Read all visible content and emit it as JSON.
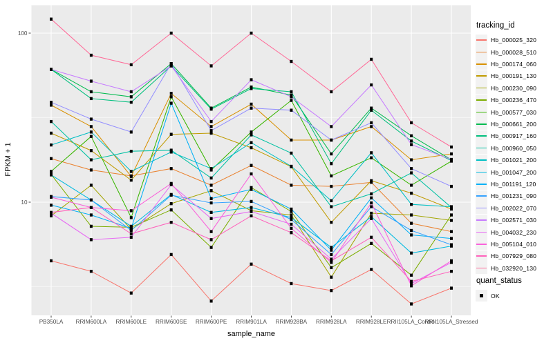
{
  "figure": {
    "background": "#FFFFFF",
    "panel_background": "#EBEBEB",
    "grid_color": "#FFFFFF",
    "axis_text_color": "#4D4D4D",
    "axis_tick_color": "#333333",
    "title_color": "#000000",
    "legend_key_fill": "#F2F2F2",
    "point_color": "#000000"
  },
  "chart_data": {
    "type": "line",
    "title": "",
    "xlabel": "sample_name",
    "ylabel": "FPKM + 1",
    "y_scale": "log10",
    "y_axis_ticks": [
      100,
      10
    ],
    "y_minor_gridlines": [
      31.62,
      3.162
    ],
    "ylim": [
      2.1,
      145
    ],
    "grid": true,
    "point_shape": "filled-square",
    "legend_position": "right",
    "legend_title": "tracking_id",
    "point_legend_title": "quant_status",
    "point_legend_items": [
      "OK"
    ],
    "categories": [
      "PB350LA",
      "RRIM600LA",
      "RRIM600LE",
      "RRIM600SE",
      "RRIM600PE",
      "RRIM901LA",
      "RRIM928BA",
      "RRIM928LA",
      "RRIM928LE",
      "RRII105LA_Control",
      "RRII105LA_Stressed"
    ],
    "series": [
      {
        "name": "Hb_000025_320",
        "color": "#F8766D",
        "values": [
          4.5,
          3.9,
          2.9,
          4.9,
          2.6,
          4.3,
          3.3,
          3.0,
          4.0,
          2.5,
          3.1
        ]
      },
      {
        "name": "Hb_000028_510",
        "color": "#EA8331",
        "values": [
          18.1,
          15.5,
          14.3,
          15.8,
          12.6,
          16.5,
          12.6,
          12.4,
          13.1,
          7.5,
          6.7
        ]
      },
      {
        "name": "Hb_000174_060",
        "color": "#D89000",
        "values": [
          37.5,
          28.0,
          14.2,
          44.0,
          28.0,
          38.0,
          23.3,
          23.3,
          28.0,
          17.8,
          19.3
        ]
      },
      {
        "name": "Hb_000191_130",
        "color": "#C09B00",
        "values": [
          25.6,
          20.2,
          13.5,
          25.2,
          25.6,
          21.0,
          16.2,
          7.6,
          13.4,
          11.3,
          9.1
        ]
      },
      {
        "name": "Hb_000230_090",
        "color": "#A3A500",
        "values": [
          8.3,
          12.6,
          6.9,
          9.8,
          11.7,
          8.9,
          8.4,
          3.6,
          8.6,
          8.4,
          7.8
        ]
      },
      {
        "name": "Hb_000236_470",
        "color": "#7CAE00",
        "values": [
          14.6,
          7.2,
          7.1,
          9.0,
          5.4,
          12.2,
          8.8,
          4.1,
          5.7,
          3.7,
          8.4
        ]
      },
      {
        "name": "Hb_000577_030",
        "color": "#39B600",
        "values": [
          15.2,
          24.5,
          8.1,
          42.0,
          15.5,
          26.0,
          40.0,
          14.3,
          18.3,
          12.6,
          17.5
        ]
      },
      {
        "name": "Hb_000661_200",
        "color": "#00BB4E",
        "values": [
          61.0,
          45.0,
          42.0,
          66.0,
          36.0,
          48.0,
          43.0,
          19.3,
          36.0,
          24.7,
          17.8
        ]
      },
      {
        "name": "Hb_000917_160",
        "color": "#00BF7D",
        "values": [
          61.0,
          41.0,
          39.0,
          64.0,
          35.5,
          47.0,
          45.0,
          16.9,
          35.0,
          23.0,
          17.6
        ]
      },
      {
        "name": "Hb_000960_050",
        "color": "#00C1A3",
        "values": [
          30.0,
          17.8,
          20.0,
          20.3,
          13.9,
          25.0,
          19.5,
          9.4,
          11.2,
          14.9,
          9.3
        ]
      },
      {
        "name": "Hb_001021_200",
        "color": "#00BFC4",
        "values": [
          21.8,
          26.0,
          15.2,
          19.8,
          15.8,
          22.5,
          16.3,
          10.2,
          19.6,
          9.7,
          9.4
        ]
      },
      {
        "name": "Hb_001047_200",
        "color": "#00BAE0",
        "values": [
          14.5,
          10.3,
          7.2,
          11.1,
          8.7,
          9.3,
          8.1,
          5.4,
          8.2,
          5.0,
          5.5
        ]
      },
      {
        "name": "Hb_001191_120",
        "color": "#00B0F6",
        "values": [
          9.6,
          8.4,
          7.0,
          38.5,
          10.5,
          11.9,
          9.1,
          5.2,
          10.6,
          6.4,
          6.1
        ]
      },
      {
        "name": "Hb_001231_090",
        "color": "#35A2FF",
        "values": [
          10.8,
          10.3,
          6.8,
          11.0,
          9.9,
          10.1,
          7.9,
          4.9,
          9.4,
          6.8,
          5.6
        ]
      },
      {
        "name": "Hb_002022_070",
        "color": "#9590FF",
        "values": [
          39.0,
          31.0,
          26.0,
          66.0,
          26.5,
          36.0,
          35.0,
          23.3,
          29.5,
          15.8,
          12.4
        ]
      },
      {
        "name": "Hb_002571_030",
        "color": "#C77CFF",
        "values": [
          61.0,
          52.0,
          45.0,
          64.0,
          30.0,
          53.0,
          42.0,
          28.0,
          49.4,
          21.9,
          17.9
        ]
      },
      {
        "name": "Hb_004032_230",
        "color": "#E76BF3",
        "values": [
          8.6,
          6.0,
          6.2,
          12.7,
          8.0,
          8.8,
          7.4,
          4.6,
          8.0,
          3.3,
          4.4
        ]
      },
      {
        "name": "Hb_005104_010",
        "color": "#FA62DB",
        "values": [
          10.7,
          9.3,
          8.9,
          12.9,
          6.7,
          14.7,
          7.0,
          4.4,
          9.9,
          3.2,
          4.5
        ]
      },
      {
        "name": "Hb_007929_080",
        "color": "#FF62BC",
        "values": [
          8.7,
          9.3,
          6.5,
          7.6,
          6.0,
          8.3,
          6.6,
          4.5,
          6.2,
          3.4,
          3.9
        ]
      },
      {
        "name": "Hb_032920_130",
        "color": "#FF6A98",
        "values": [
          121.0,
          74.0,
          65.0,
          100.0,
          64.0,
          100.0,
          68.0,
          45.0,
          70.0,
          29.5,
          21.2
        ]
      }
    ]
  }
}
